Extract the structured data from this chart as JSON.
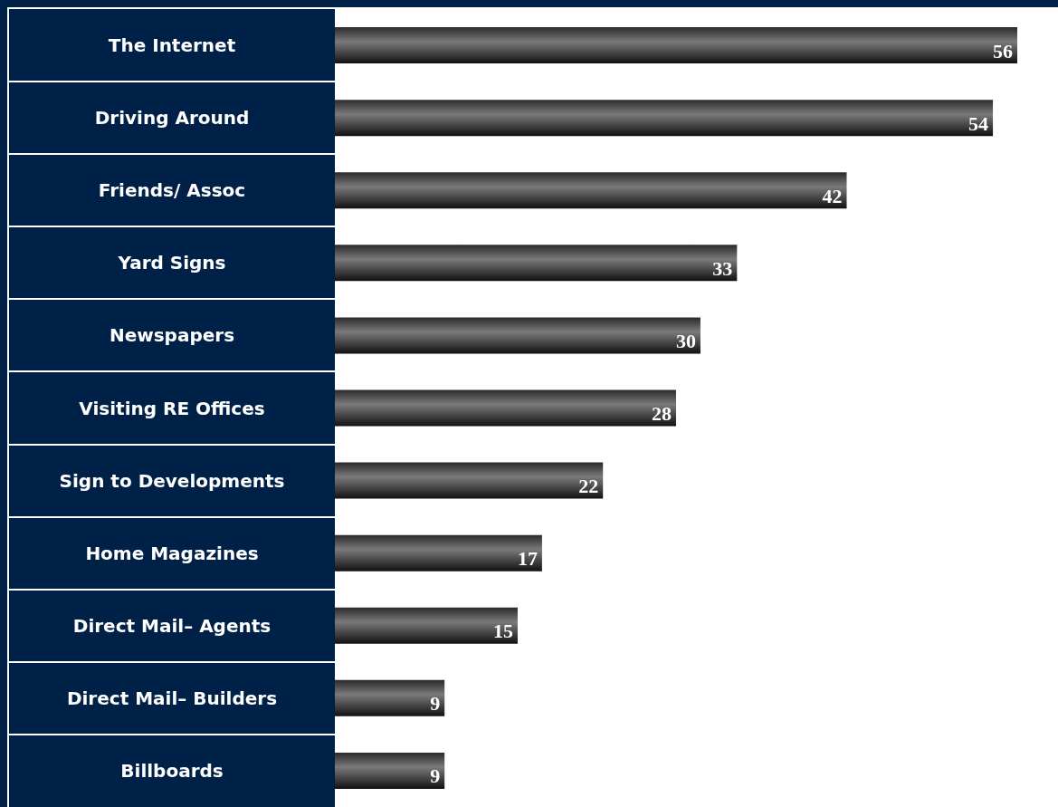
{
  "chart_data": {
    "type": "bar",
    "orientation": "horizontal",
    "categories": [
      "The Internet",
      "Driving Around",
      "Friends/ Assoc",
      "Yard Signs",
      "Newspapers",
      "Visiting RE Offices",
      "Sign to Developments",
      "Home Magazines",
      "Direct Mail– Agents",
      "Direct Mail– Builders",
      "Billboards"
    ],
    "values": [
      56,
      54,
      42,
      33,
      30,
      28,
      22,
      17,
      15,
      9,
      9
    ],
    "color": "#7a7a7a",
    "data_labels": true
  }
}
